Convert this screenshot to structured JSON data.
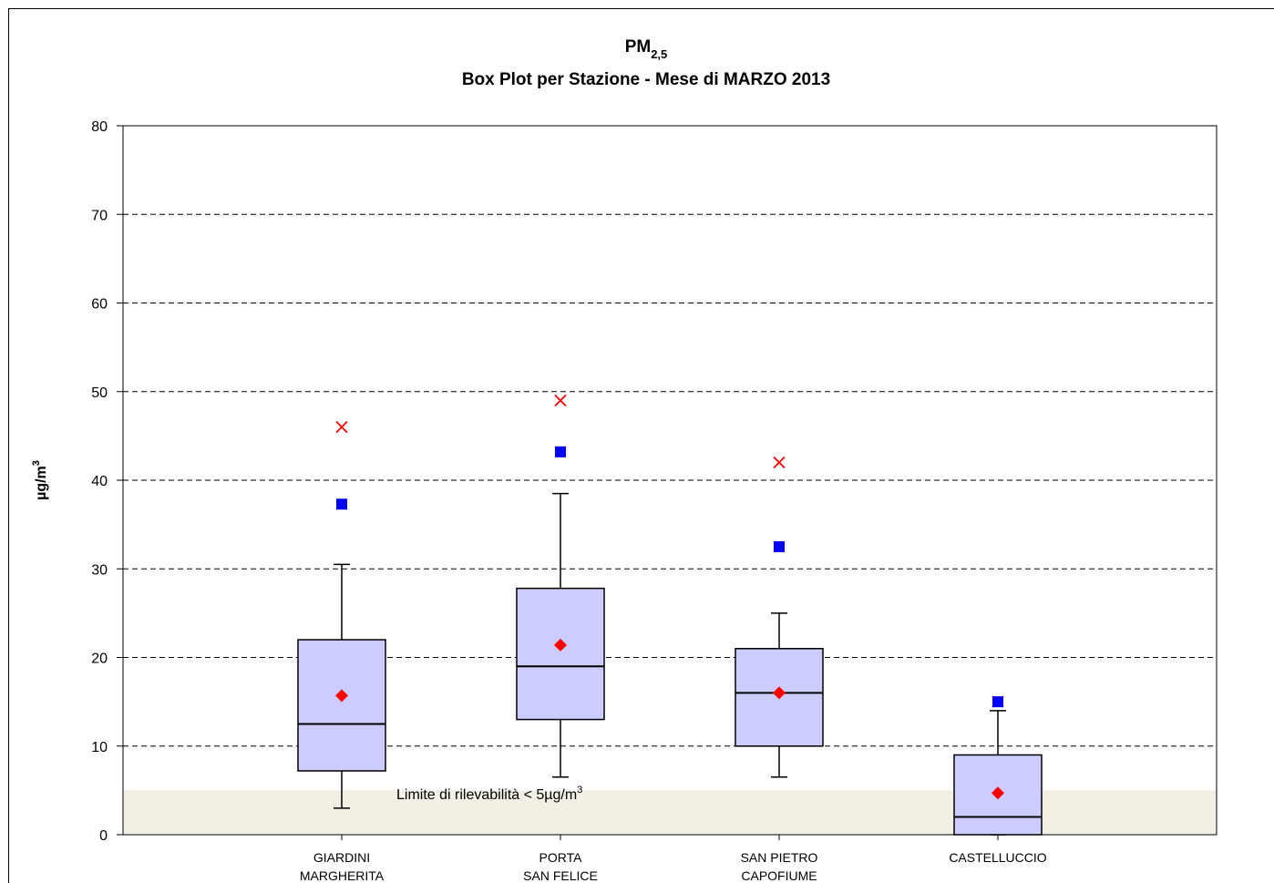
{
  "chart_data": {
    "type": "box",
    "title": "PM",
    "title_sub": "2,5",
    "subtitle": "Box Plot per Stazione - Mese di MARZO 2013",
    "y_label": "µg/m",
    "y_label_sup": "3",
    "categories": [
      [
        "GIARDINI",
        "MARGHERITA"
      ],
      [
        "PORTA",
        "SAN FELICE"
      ],
      [
        "SAN PIETRO",
        "CAPOFIUME"
      ],
      [
        "CASTELLUCCIO"
      ]
    ],
    "whisker_low": [
      3,
      6.5,
      6.5,
      0
    ],
    "q1": [
      7.2,
      13,
      10,
      0
    ],
    "median": [
      12.5,
      19,
      16,
      2
    ],
    "q3": [
      22,
      27.8,
      21,
      9
    ],
    "whisker_high": [
      30.5,
      38.5,
      25,
      14
    ],
    "mean": [
      15.7,
      21.4,
      16,
      4.7
    ],
    "square": [
      37.3,
      43.2,
      32.5,
      15
    ],
    "cross": [
      46,
      49,
      42,
      15
    ],
    "box_color": "#ccccff",
    "mean_color": "#ff0000",
    "square_color": "#0000ff",
    "cross_color": "#ff0000",
    "detection_limit": 5,
    "detection_label": "Limite di rilevabilità < 5µg/m",
    "detection_label_sup": "3",
    "limit_color": "#f2efe4",
    "ylim": [
      0,
      80
    ],
    "yticks": [
      0,
      10,
      20,
      30,
      40,
      50,
      60,
      70,
      80
    ],
    "grid": true
  }
}
